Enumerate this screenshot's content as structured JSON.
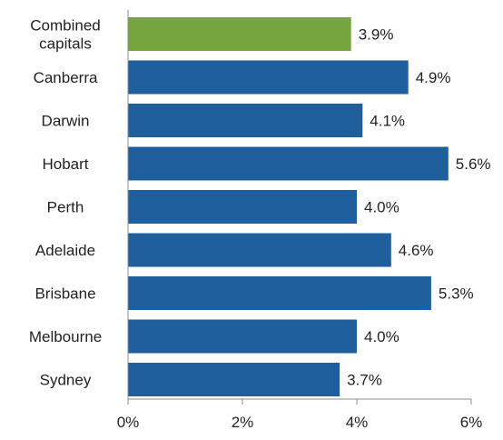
{
  "chart_data": {
    "type": "bar",
    "orientation": "horizontal",
    "categories": [
      [
        "Combined",
        "capitals"
      ],
      [
        "Canberra"
      ],
      [
        "Darwin"
      ],
      [
        "Hobart"
      ],
      [
        "Perth"
      ],
      [
        "Adelaide"
      ],
      [
        "Brisbane"
      ],
      [
        "Melbourne"
      ],
      [
        "Sydney"
      ]
    ],
    "values": [
      3.9,
      4.9,
      4.1,
      5.6,
      4.0,
      4.6,
      5.3,
      4.0,
      3.7
    ],
    "value_labels": [
      "3.9%",
      "4.9%",
      "4.1%",
      "5.6%",
      "4.0%",
      "4.6%",
      "5.3%",
      "4.0%",
      "3.7%"
    ],
    "bar_colors": [
      "#77A53D",
      "#1F5F9E",
      "#1F5F9E",
      "#1F5F9E",
      "#1F5F9E",
      "#1F5F9E",
      "#1F5F9E",
      "#1F5F9E",
      "#1F5F9E"
    ],
    "xlim": [
      0,
      6
    ],
    "xticks": [
      0,
      2,
      4,
      6
    ],
    "xtick_labels": [
      "0%",
      "2%",
      "4%",
      "6%"
    ],
    "grid": false,
    "title": "",
    "xlabel": "",
    "ylabel": ""
  }
}
